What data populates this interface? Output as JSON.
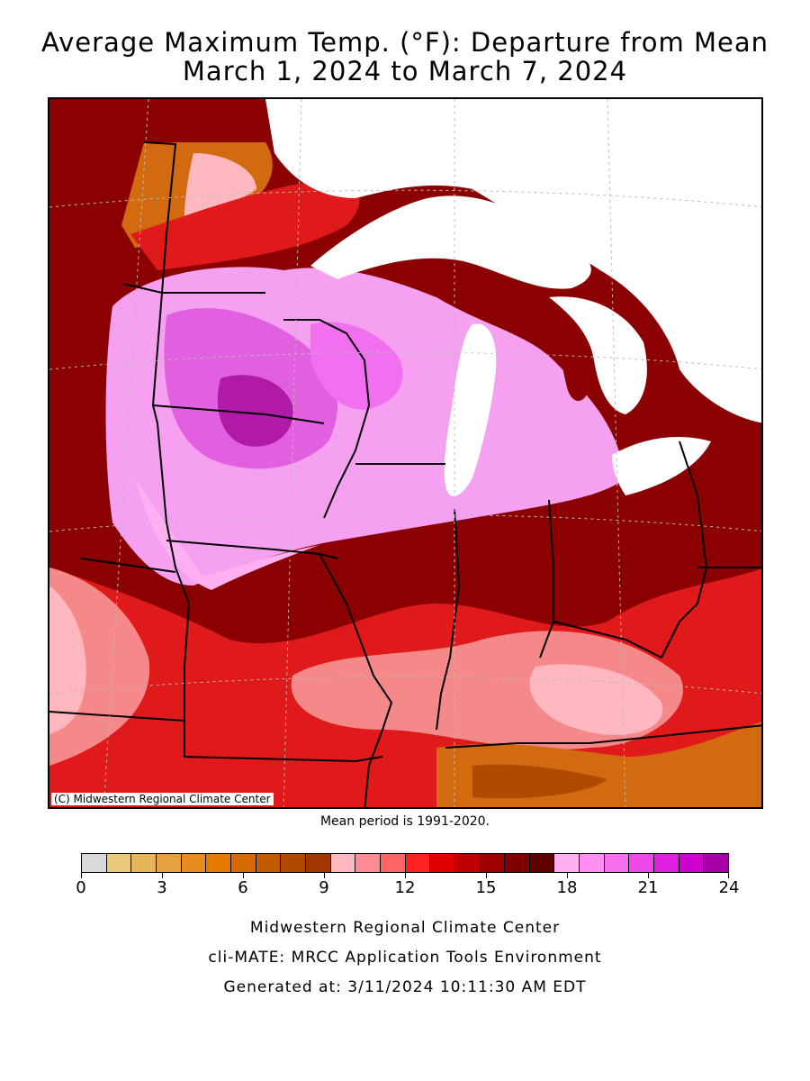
{
  "title": {
    "line1": "Average Maximum Temp. (°F): Departure from Mean",
    "line2": "March 1, 2024 to March 7, 2024"
  },
  "map": {
    "credit": "(C) Midwestern Regional Climate Center",
    "region_colors": {
      "water": "#ffffff",
      "warm_pink": "#f5a0f0",
      "hot_pink": "#e060e0",
      "magenta_core": "#b01aa6",
      "dark_red": "#8b0000",
      "red": "#e01a1a",
      "salmon": "#f58888",
      "light_pink": "#ffb8c0",
      "orange": "#d26a10"
    }
  },
  "mean_period": "Mean period is 1991-2020.",
  "legend": {
    "colors": [
      "#d9d9d9",
      "#e8c97a",
      "#e6b55a",
      "#e6a040",
      "#e88a20",
      "#e67a00",
      "#d66a00",
      "#c45a00",
      "#b04a00",
      "#a03800",
      "#ffb8c0",
      "#ff8c94",
      "#ff6464",
      "#ff2020",
      "#e00000",
      "#c00000",
      "#a00000",
      "#800000",
      "#600000",
      "#ffb0f0",
      "#ff90f0",
      "#f870f0",
      "#f048e8",
      "#e020e0",
      "#d000d0",
      "#a800a8"
    ],
    "tick_labels": [
      "0",
      "3",
      "6",
      "9",
      "12",
      "15",
      "18",
      "21",
      "24"
    ]
  },
  "footer": {
    "line1": "Midwestern Regional Climate Center",
    "line2": "cli-MATE: MRCC Application Tools Environment",
    "line3": "Generated at: 3/11/2024 10:11:30 AM EDT"
  }
}
